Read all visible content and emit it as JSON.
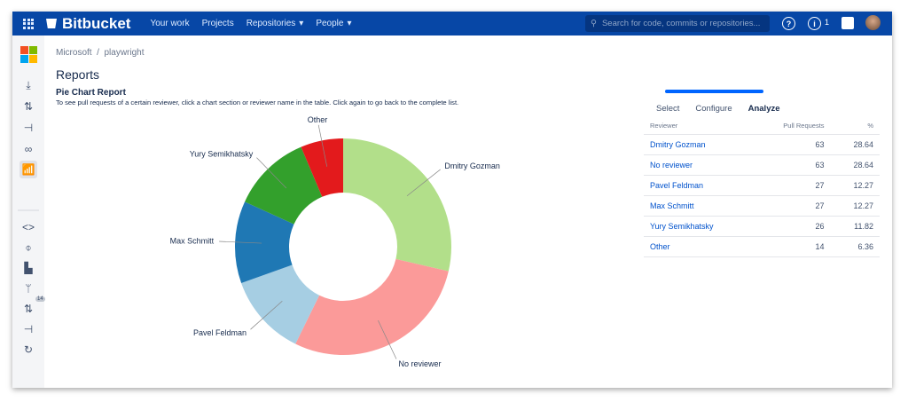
{
  "nav": {
    "brand": "Bitbucket",
    "links": [
      "Your work",
      "Projects",
      "Repositories",
      "People"
    ],
    "search_placeholder": "Search for code, commits or repositories...",
    "notifications": "1",
    "colors": {
      "bar": "#0747A6"
    }
  },
  "sidebar": {
    "pr_badge": "14",
    "icons": [
      "clone-icon",
      "pull-requests-icon",
      "branch-icon",
      "compare-icon",
      "reports-icon",
      "source-icon",
      "commits-icon",
      "insights-icon",
      "branches-icon",
      "pull-requests-icon",
      "forks-icon",
      "sync-icon"
    ]
  },
  "breadcrumb": {
    "project": "Microsoft",
    "sep": "/",
    "repo": "playwright"
  },
  "page_title": "Reports",
  "report": {
    "title": "Pie Chart Report",
    "description": "To see pull requests of a certain reviewer, click a chart section or reviewer name in the table. Click again to go back to the complete list."
  },
  "tabs": {
    "select": "Select",
    "configure": "Configure",
    "analyze": "Analyze",
    "active": "Analyze"
  },
  "table": {
    "headers": [
      "Reviewer",
      "Pull Requests",
      "%"
    ],
    "rows": [
      {
        "name": "Dmitry Gozman",
        "count": "63",
        "pct": "28.64"
      },
      {
        "name": "No reviewer",
        "count": "63",
        "pct": "28.64"
      },
      {
        "name": "Pavel Feldman",
        "count": "27",
        "pct": "12.27"
      },
      {
        "name": "Max Schmitt",
        "count": "27",
        "pct": "12.27"
      },
      {
        "name": "Yury Semikhatsky",
        "count": "26",
        "pct": "11.82"
      },
      {
        "name": "Other",
        "count": "14",
        "pct": "6.36"
      }
    ]
  },
  "chart_data": {
    "type": "pie",
    "donut": true,
    "categories": [
      "Dmitry Gozman",
      "No reviewer",
      "Pavel Feldman",
      "Max Schmitt",
      "Yury Semikhatsky",
      "Other"
    ],
    "values": [
      63,
      63,
      27,
      27,
      26,
      14
    ],
    "colors": [
      "#b2df8a",
      "#fb9a99",
      "#a6cee3",
      "#1f78b4",
      "#33a02c",
      "#e31a1c"
    ]
  }
}
